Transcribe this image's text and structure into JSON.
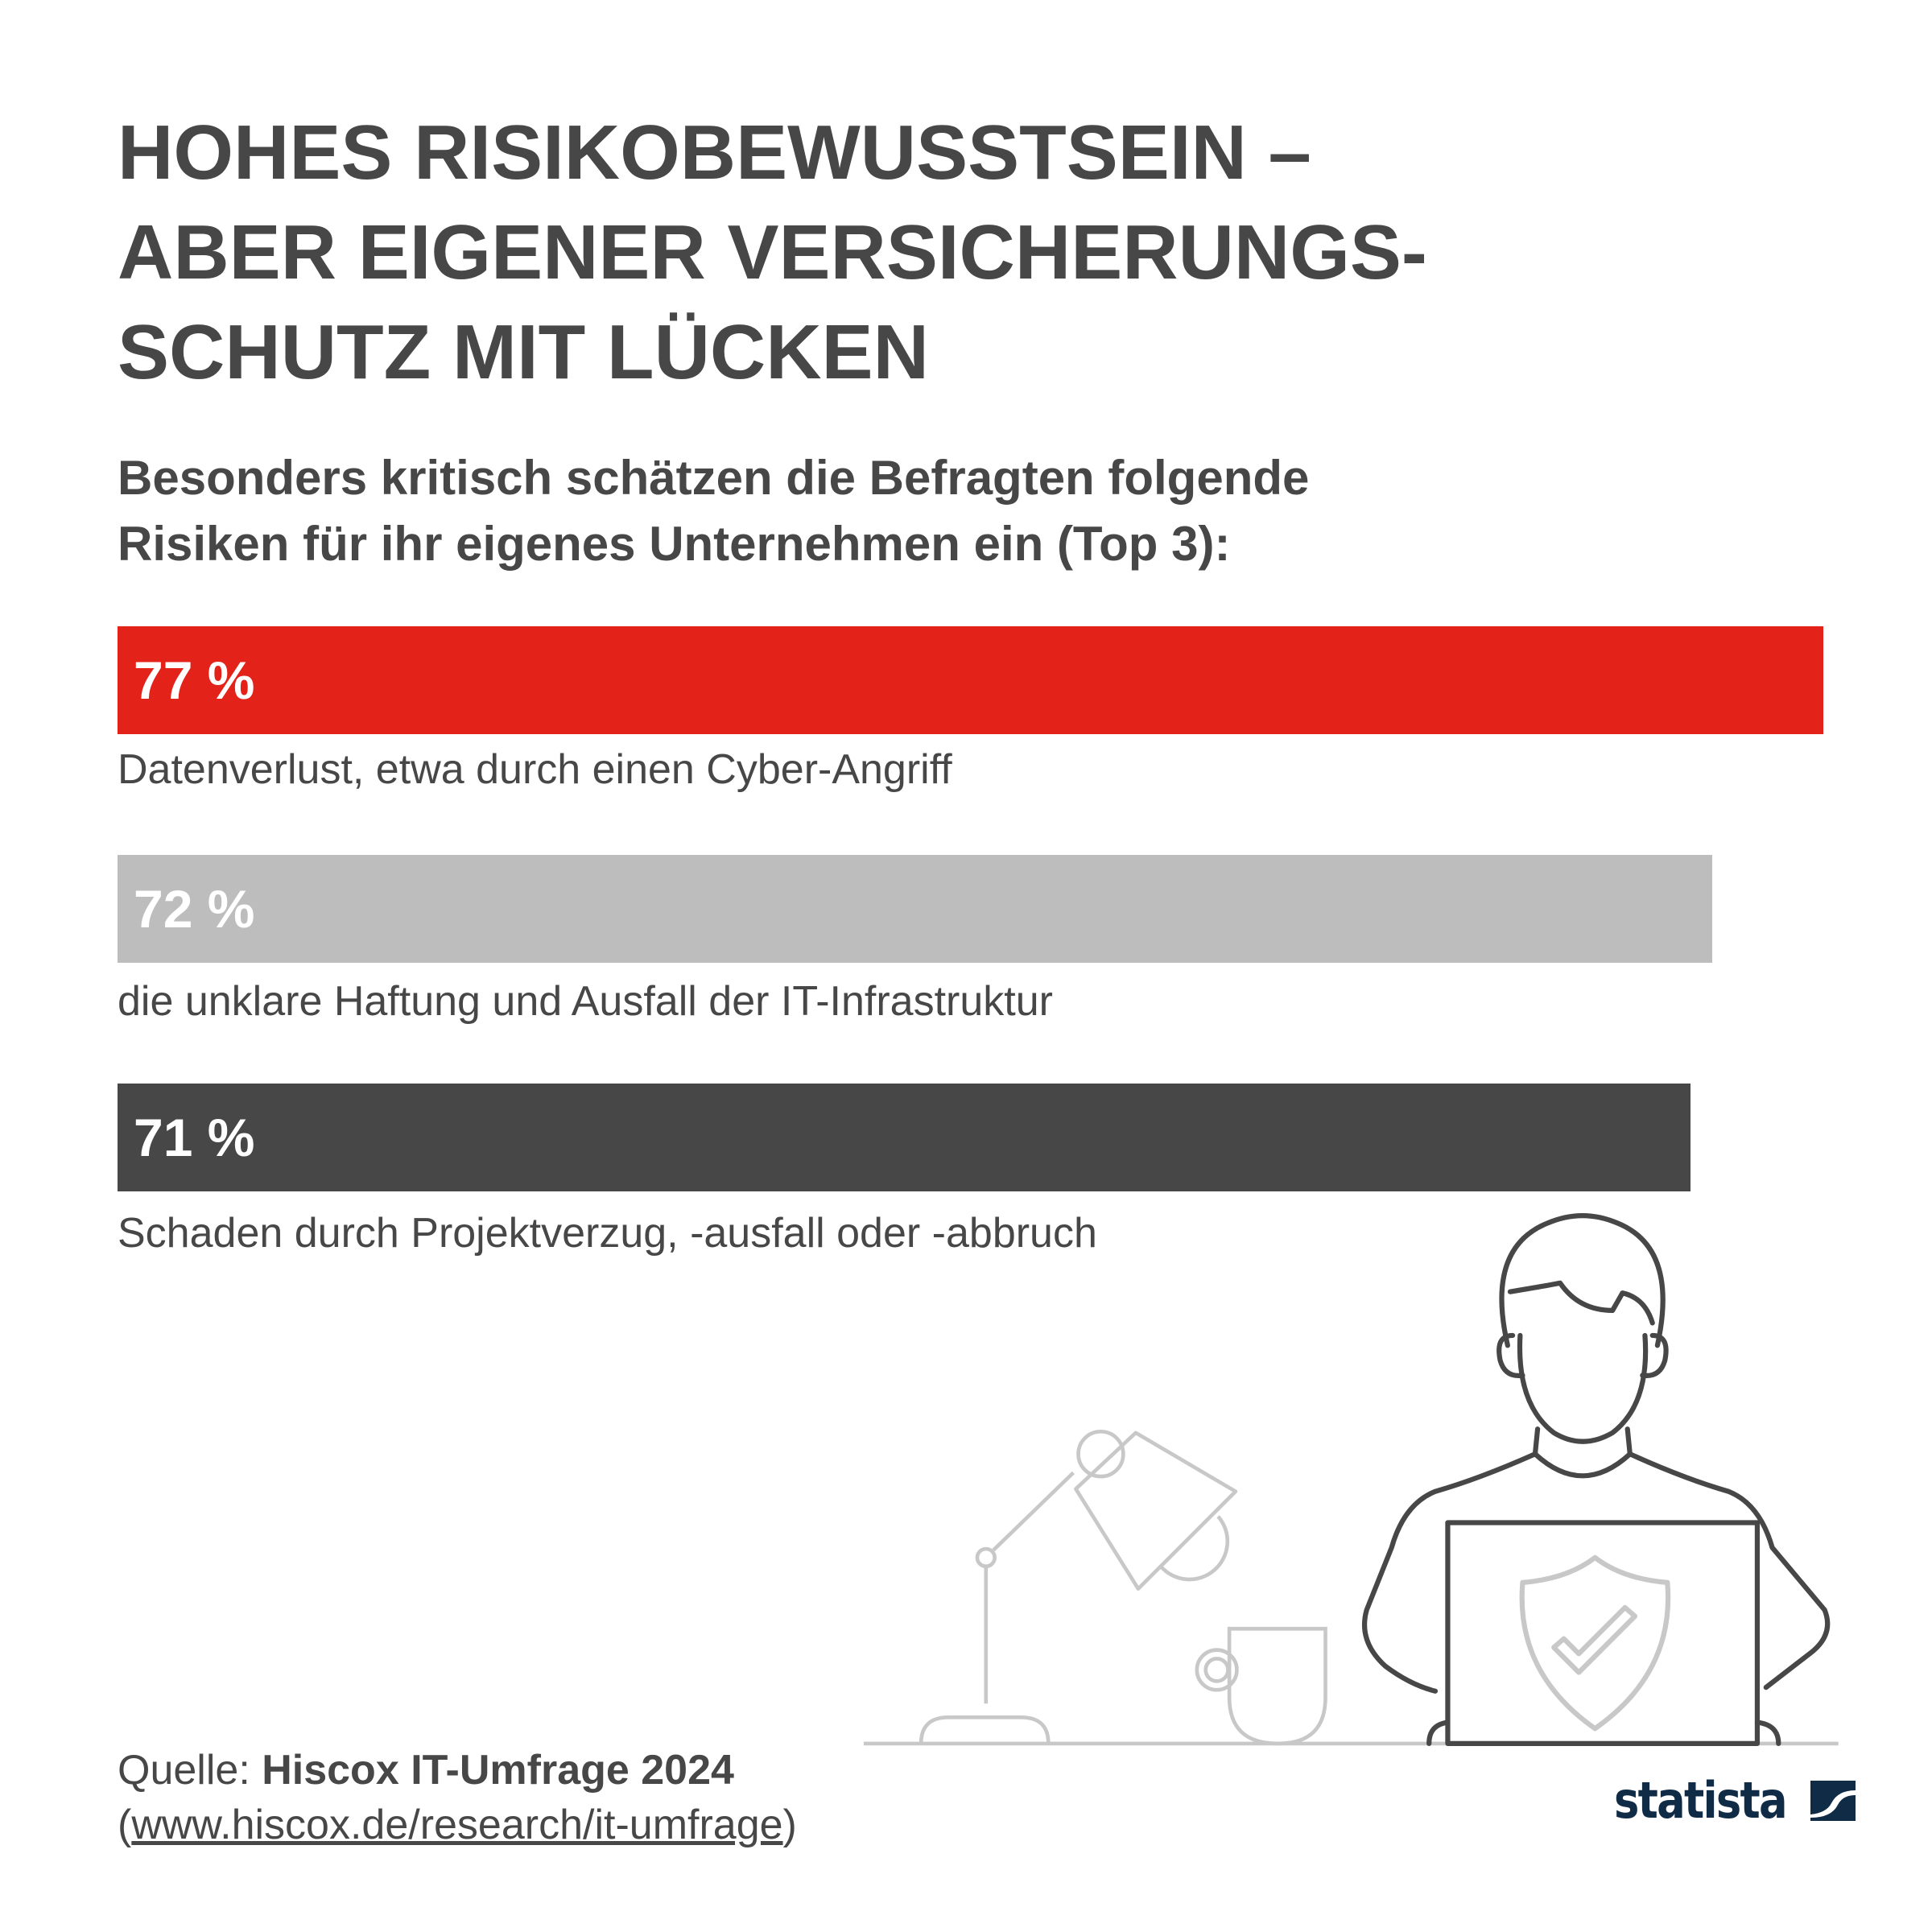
{
  "title_lines": [
    "HOHES RISIKOBEWUSSTSEIN –",
    "ABER EIGENER VERSICHERUNGS-",
    "SCHUTZ MIT LÜCKEN"
  ],
  "subtitle_lines": [
    "Besonders kritisch schätzen die Befragten folgende",
    "Risiken für ihr eigenes Unternehmen ein (Top 3):"
  ],
  "chart_data": {
    "type": "bar",
    "orientation": "horizontal",
    "categories": [
      "Datenverlust, etwa durch einen Cyber-Angriff",
      "die unklare Haftung und Ausfall der IT-Infrastruktur",
      "Schaden durch Projektverzug, -ausfall oder -abbruch"
    ],
    "values": [
      77,
      72,
      71
    ],
    "value_labels": [
      "77 %",
      "72 %",
      "71 %"
    ],
    "colors": [
      "#e3231a",
      "#bdbdbd",
      "#474747"
    ],
    "unit": "%"
  },
  "source": {
    "prefix": "Quelle: ",
    "name": "Hiscox IT-Umfrage 2024",
    "open_paren": "(",
    "url": "www.hiscox.de/research/it-umfrage",
    "close_paren": ")"
  },
  "logo": {
    "text": "statista"
  },
  "icons": [
    "person-at-laptop-icon",
    "shield-check-icon",
    "desk-lamp-icon",
    "mug-icon"
  ]
}
